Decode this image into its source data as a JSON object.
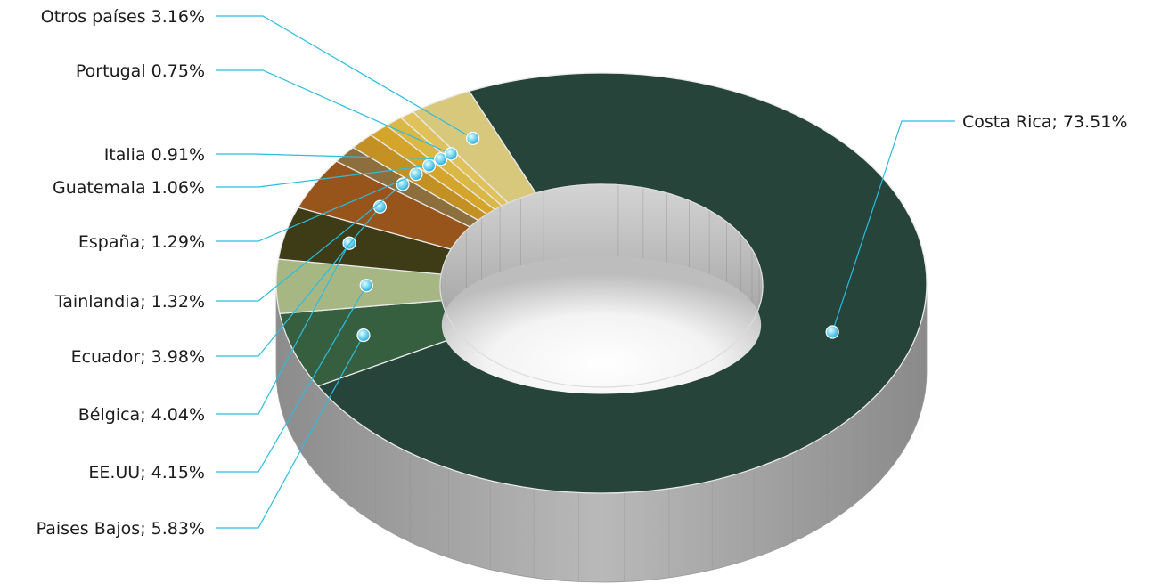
{
  "chart_data": {
    "type": "pie",
    "style": "3d-donut",
    "slices": [
      {
        "label": "Costa Rica; 73.51%",
        "value": 73.51,
        "color": "#26443a"
      },
      {
        "label": "Paises Bajos; 5.83%",
        "value": 5.83,
        "color": "#355f3f"
      },
      {
        "label": "EE.UU; 4.15%",
        "value": 4.15,
        "color": "#a7b784"
      },
      {
        "label": "Bélgica; 4.04%",
        "value": 4.04,
        "color": "#3e3b17"
      },
      {
        "label": "Ecuador; 3.98%",
        "value": 3.98,
        "color": "#97541b"
      },
      {
        "label": "Tainlandia; 1.32%",
        "value": 1.32,
        "color": "#8c6f3c"
      },
      {
        "label": "España; 1.29%",
        "value": 1.29,
        "color": "#c39023"
      },
      {
        "label": "Guatemala 1.06%",
        "value": 1.06,
        "color": "#d4a52a"
      },
      {
        "label": "Italia 0.91%",
        "value": 0.91,
        "color": "#d9b845"
      },
      {
        "label": "Portugal 0.75%",
        "value": 0.75,
        "color": "#e1c25a"
      },
      {
        "label": "Otros países 3.16%",
        "value": 3.16,
        "color": "#d8c87c"
      }
    ],
    "marker_color": "#7fd9f3",
    "leader_color": "#2bbde0",
    "side_color": "#a9a9a9"
  }
}
